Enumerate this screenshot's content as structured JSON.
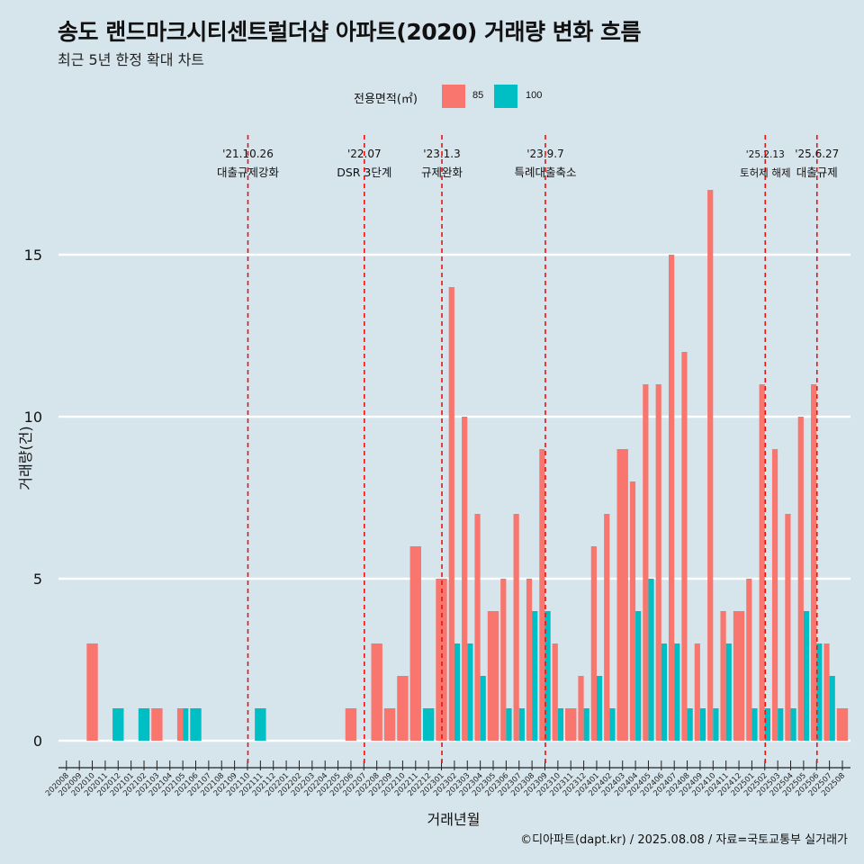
{
  "title": "송도 랜드마크시티센트럴더샵 아파트(2020) 거래량 변화 흐름",
  "subtitle": "최근 5년 한정 확대 차트",
  "caption": "©디아파트(dapt.kr) / 2025.08.08 / 자료=국토교통부 실거래가",
  "colors": {
    "background": "#d6e4ec",
    "s85": "#f8766d",
    "s100": "#00bfc4",
    "event_line": "#ee1111",
    "grid": "#ffffff"
  },
  "legend": {
    "title": "전용면적(㎡)",
    "items": [
      {
        "label": "85",
        "color": "#f8766d"
      },
      {
        "label": "100",
        "color": "#00bfc4"
      }
    ]
  },
  "chart_data": {
    "type": "bar",
    "xlabel": "거래년월",
    "ylabel": "거래량(건)",
    "ylim": [
      0,
      17
    ],
    "yticks": [
      0,
      5,
      10,
      15
    ],
    "grid": true,
    "legend_position": "top",
    "categories": [
      "202008",
      "202009",
      "202010",
      "202011",
      "202012",
      "202101",
      "202102",
      "202103",
      "202104",
      "202105",
      "202106",
      "202107",
      "202108",
      "202109",
      "202110",
      "202111",
      "202112",
      "202201",
      "202202",
      "202203",
      "202204",
      "202205",
      "202206",
      "202207",
      "202208",
      "202209",
      "202210",
      "202211",
      "202212",
      "202301",
      "202302",
      "202303",
      "202304",
      "202305",
      "202306",
      "202307",
      "202308",
      "202309",
      "202310",
      "202311",
      "202312",
      "202401",
      "202402",
      "202403",
      "202404",
      "202405",
      "202406",
      "202407",
      "202408",
      "202409",
      "202410",
      "202411",
      "202412",
      "202501",
      "202502",
      "202503",
      "202504",
      "202505",
      "202506",
      "202507",
      "202508"
    ],
    "series": [
      {
        "name": "85",
        "values": [
          0,
          0,
          3,
          0,
          0,
          0,
          0,
          1,
          0,
          1,
          0,
          0,
          0,
          0,
          0,
          0,
          0,
          0,
          0,
          0,
          0,
          0,
          1,
          0,
          3,
          1,
          2,
          6,
          0,
          5,
          14,
          10,
          7,
          4,
          5,
          7,
          5,
          9,
          3,
          1,
          2,
          6,
          7,
          9,
          8,
          11,
          11,
          15,
          12,
          3,
          17,
          4,
          4,
          5,
          11,
          9,
          7,
          10,
          11,
          3,
          1
        ]
      },
      {
        "name": "100",
        "values": [
          0,
          0,
          0,
          0,
          1,
          0,
          1,
          0,
          0,
          1,
          1,
          0,
          0,
          0,
          0,
          1,
          0,
          0,
          0,
          0,
          0,
          0,
          0,
          0,
          0,
          0,
          0,
          0,
          1,
          0,
          3,
          3,
          2,
          0,
          1,
          1,
          4,
          4,
          1,
          0,
          1,
          2,
          1,
          0,
          4,
          5,
          3,
          3,
          1,
          1,
          1,
          3,
          0,
          1,
          1,
          1,
          1,
          4,
          3,
          2,
          0
        ]
      }
    ],
    "events": [
      {
        "date": "'21.10.26",
        "label": "대출규제강화",
        "position_month": "202110"
      },
      {
        "date": "'22.07",
        "label": "DSR 3단계",
        "position_month": "202207"
      },
      {
        "date": "'23.1.3",
        "label": "규제완화",
        "position_month": "202301"
      },
      {
        "date": "'23.9.7",
        "label": "특례대출축소",
        "position_month": "202309"
      },
      {
        "date": "'25.2.13",
        "label": "토허제 해제",
        "position_month": "202502"
      },
      {
        "date": "'25.6.27",
        "label": "대출규제",
        "position_month": "202506"
      }
    ]
  }
}
